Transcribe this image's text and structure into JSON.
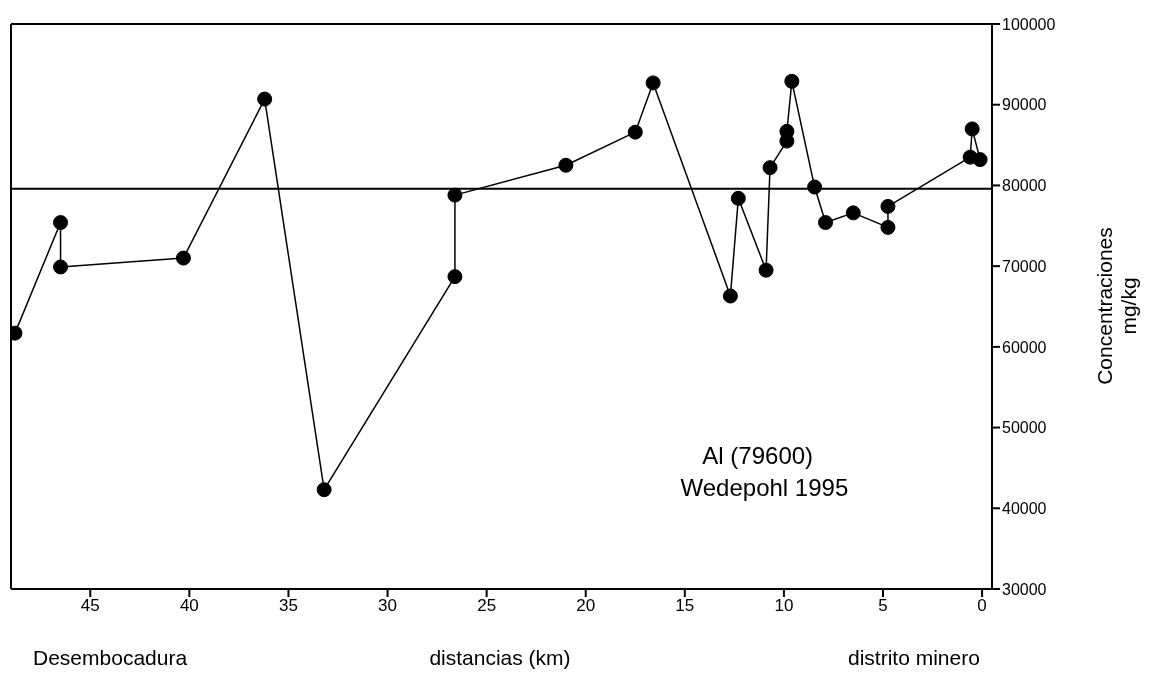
{
  "chart_data": {
    "type": "line",
    "xlabel": "distancias (km)",
    "ylabel": "Concentraciones\nmg/kg",
    "x": [
      48.8,
      46.5,
      46.5,
      40.3,
      36.2,
      33.2,
      26.6,
      26.6,
      21.0,
      17.5,
      16.6,
      12.7,
      12.3,
      10.9,
      10.7,
      9.85,
      9.85,
      9.6,
      8.45,
      7.9,
      6.5,
      4.75,
      4.75,
      0.6,
      0.5,
      0.1
    ],
    "series": [
      {
        "color": "#000000",
        "values": [
          61700,
          75400,
          69900,
          71000,
          90700,
          42300,
          68700,
          78800,
          82500,
          86600,
          92700,
          66300,
          78400,
          69500,
          82200,
          85500,
          86700,
          92900,
          79800,
          75400,
          76600,
          74800,
          77400,
          83500,
          87000,
          83200
        ]
      }
    ],
    "xlim": [
      49,
      -0.5
    ],
    "xticks": [
      45,
      40,
      35,
      30,
      25,
      20,
      15,
      10,
      5,
      0
    ],
    "ylim": [
      30000,
      100000
    ],
    "yticks": [
      30000,
      40000,
      50000,
      60000,
      70000,
      80000,
      90000,
      100000
    ],
    "ref_lines": [
      {
        "axis": "y",
        "value": 79600,
        "color": "#000000"
      }
    ],
    "annotations": [
      "Desembocadura",
      "distrito minero",
      "Al (79600)",
      "Wedepohl 1995"
    ],
    "marker": "circle",
    "line_style": "solid",
    "grid": false
  }
}
